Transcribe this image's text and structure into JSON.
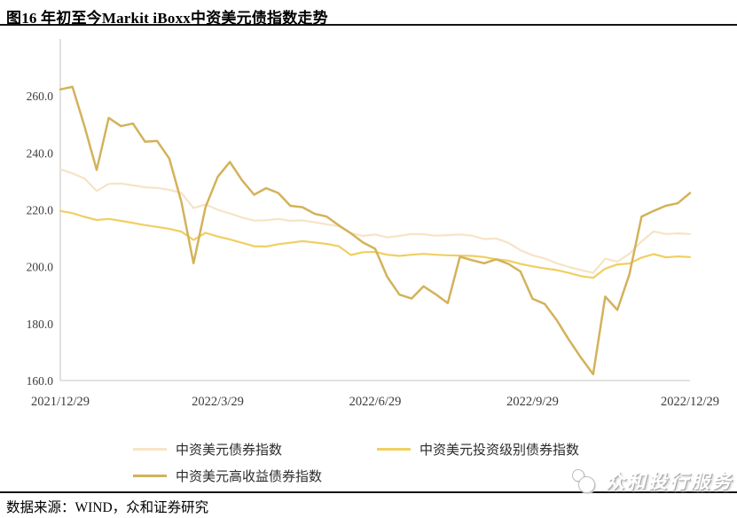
{
  "header": {
    "title": "图16 年初至今Markit iBoxx中资美元债指数走势"
  },
  "footer": {
    "source_label": "数据来源：WIND，众和证券研究"
  },
  "watermark": {
    "text": "众和投行服务",
    "logo": "overlapping-circles-logo"
  },
  "chart_data": {
    "type": "line",
    "title": "",
    "xlabel": "",
    "ylabel": "",
    "grid": false,
    "legend_position": "bottom",
    "ylim": [
      160,
      280
    ],
    "y_tick_values": [
      260,
      240,
      220,
      200,
      180,
      160
    ],
    "y_tick_labels": [
      "260.0",
      "240.0",
      "220.0",
      "200.0",
      "180.0",
      "160.0"
    ],
    "x_tick_labels": [
      "2021/12/29",
      "2022/3/29",
      "2022/6/29",
      "2022/9/29",
      "2022/12/29"
    ],
    "x_days": [
      0,
      7,
      14,
      21,
      28,
      35,
      42,
      49,
      56,
      63,
      70,
      77,
      84,
      91,
      98,
      105,
      112,
      119,
      126,
      133,
      140,
      147,
      154,
      161,
      168,
      175,
      182,
      189,
      196,
      203,
      210,
      217,
      224,
      231,
      238,
      245,
      252,
      259,
      266,
      273,
      280,
      287,
      294,
      301,
      308,
      315,
      322,
      329,
      336,
      343,
      350,
      357,
      364
    ],
    "series": [
      {
        "name": "中资美元债券指数",
        "color": "#F6E4C6",
        "line_width": 2.2,
        "values": [
          234.2,
          232.8,
          231.0,
          226.6,
          229.1,
          229.2,
          228.6,
          227.9,
          227.7,
          227.0,
          225.9,
          220.6,
          221.9,
          220.0,
          218.7,
          217.3,
          216.2,
          216.3,
          216.8,
          216.1,
          216.3,
          215.6,
          214.9,
          214.2,
          211.8,
          210.8,
          211.3,
          210.3,
          210.8,
          211.5,
          211.4,
          210.9,
          211.1,
          211.3,
          210.9,
          209.7,
          209.9,
          208.4,
          205.8,
          204.0,
          202.9,
          201.2,
          199.9,
          198.8,
          197.8,
          202.8,
          201.8,
          204.5,
          208.9,
          212.4,
          211.5,
          211.7,
          211.5
        ]
      },
      {
        "name": "中资美元投资级别债券指数",
        "color": "#F0CF62",
        "line_width": 2.2,
        "values": [
          219.6,
          218.8,
          217.5,
          216.4,
          216.8,
          216.1,
          215.4,
          214.6,
          214.0,
          213.3,
          212.3,
          209.4,
          211.9,
          210.6,
          209.6,
          208.4,
          207.2,
          207.1,
          207.9,
          208.4,
          209.0,
          208.5,
          208.0,
          207.2,
          204.1,
          205.1,
          205.2,
          204.2,
          203.8,
          204.2,
          204.5,
          204.2,
          204.0,
          203.9,
          203.8,
          203.4,
          202.6,
          202.1,
          201.0,
          200.1,
          199.4,
          198.8,
          197.8,
          196.7,
          196.1,
          199.3,
          200.8,
          201.1,
          203.2,
          204.4,
          203.3,
          203.6,
          203.4
        ]
      },
      {
        "name": "中资美元高收益债券指数",
        "color": "#D3B25A",
        "line_width": 2.5,
        "values": [
          262.3,
          263.2,
          249.3,
          234.0,
          252.3,
          249.4,
          250.3,
          243.9,
          244.2,
          238.0,
          222.8,
          201.2,
          221.0,
          231.6,
          236.8,
          230.4,
          225.3,
          227.6,
          225.9,
          221.4,
          220.9,
          218.6,
          217.6,
          214.5,
          211.7,
          208.5,
          206.3,
          196.4,
          190.2,
          188.8,
          193.1,
          190.3,
          187.2,
          203.5,
          202.3,
          201.2,
          202.6,
          201.0,
          198.3,
          188.7,
          186.9,
          181.2,
          174.3,
          168.0,
          162.2,
          189.5,
          184.8,
          197.3,
          217.6,
          219.6,
          221.4,
          222.3,
          225.9
        ]
      }
    ],
    "axis_color": "#d9d9d9",
    "tick_label_color": "#3b3b3b"
  }
}
